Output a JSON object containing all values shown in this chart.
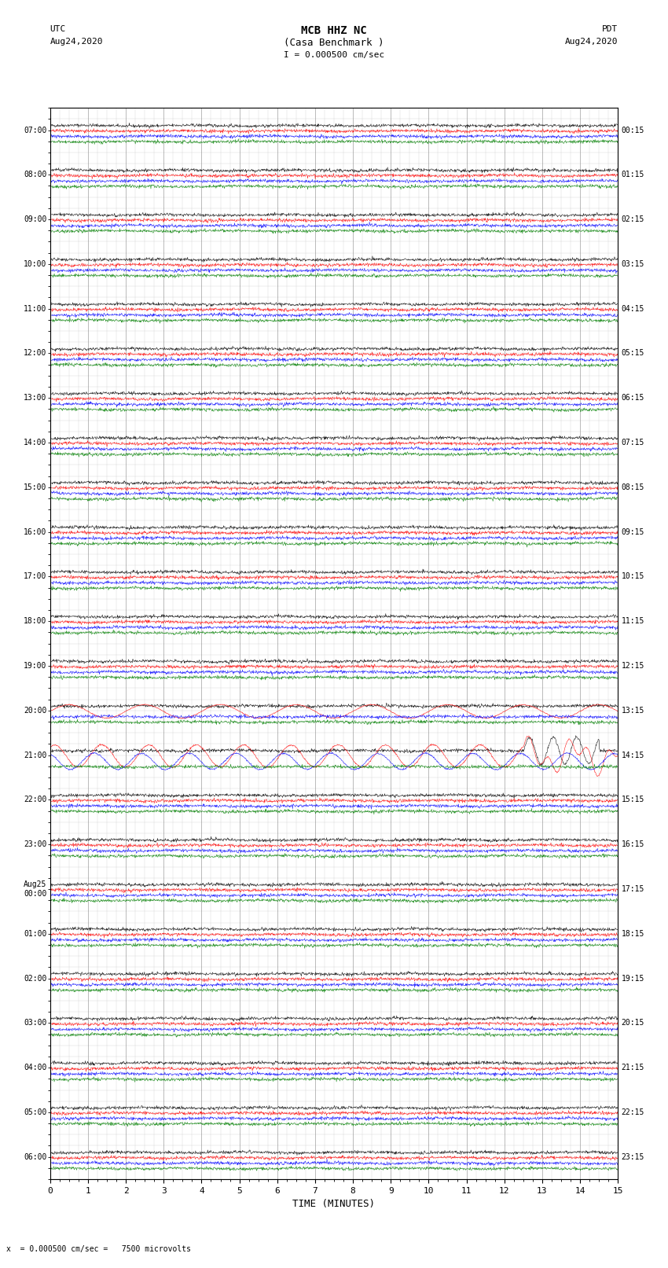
{
  "title_line1": "MCB HHZ NC",
  "title_line2": "(Casa Benchmark )",
  "title_scale": "I = 0.000500 cm/sec",
  "label_left_top": "UTC",
  "label_left_date": "Aug24,2020",
  "label_right_top": "PDT",
  "label_right_date": "Aug24,2020",
  "xlabel": "TIME (MINUTES)",
  "bottom_note": "x  = 0.000500 cm/sec =   7500 microvolts",
  "left_times": [
    "07:00",
    "08:00",
    "09:00",
    "10:00",
    "11:00",
    "12:00",
    "13:00",
    "14:00",
    "15:00",
    "16:00",
    "17:00",
    "18:00",
    "19:00",
    "20:00",
    "21:00",
    "22:00",
    "23:00",
    "Aug25\n00:00",
    "01:00",
    "02:00",
    "03:00",
    "04:00",
    "05:00",
    "06:00"
  ],
  "right_times": [
    "00:15",
    "01:15",
    "02:15",
    "03:15",
    "04:15",
    "05:15",
    "06:15",
    "07:15",
    "08:15",
    "09:15",
    "10:15",
    "11:15",
    "12:15",
    "13:15",
    "14:15",
    "15:15",
    "16:15",
    "17:15",
    "18:15",
    "19:15",
    "20:15",
    "21:15",
    "22:15",
    "23:15"
  ],
  "num_rows": 24,
  "num_minutes": 15,
  "bg_color": "#ffffff",
  "grid_color": "#888888",
  "trace_colors": [
    "#000000",
    "#ff0000",
    "#0000ff",
    "#008000"
  ],
  "noise_amplitude": 0.06,
  "signal_row_seismic": 14,
  "signal_row_small": 16,
  "signal_row_tiny": 19
}
